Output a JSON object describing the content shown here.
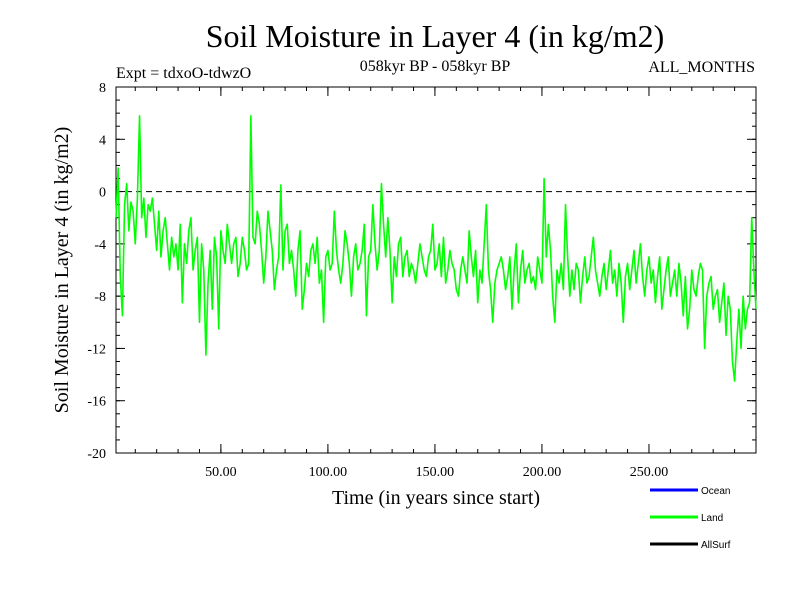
{
  "chart_data": {
    "type": "line",
    "title": "Soil Moisture in Layer 4 (in kg/m2)",
    "subtitle_left": "Expt = tdxoO-tdwzO",
    "subtitle_center": "058kyr BP - 058kyr BP",
    "subtitle_right": "ALL_MONTHS",
    "xlabel": "Time (in years since start)",
    "ylabel": "Soil Moisture in Layer 4 (in kg/m2)",
    "xlim": [
      1,
      300
    ],
    "ylim": [
      -20,
      8
    ],
    "xticks": [
      50,
      100,
      150,
      200,
      250
    ],
    "xtick_labels": [
      "50.00",
      "100.00",
      "150.00",
      "200.00",
      "250.00"
    ],
    "yticks": [
      8,
      4,
      0,
      -4,
      -8,
      -12,
      -16,
      -20
    ],
    "ytick_labels": [
      "8",
      "4",
      "0",
      "-4",
      "-8",
      "-12",
      "-16",
      "-20"
    ],
    "reference_line": {
      "y": 0,
      "style": "dashed"
    },
    "legend_position": "bottom-right",
    "series": [
      {
        "name": "Ocean",
        "legend_label": "Ocean",
        "color": "#0000ff",
        "values": []
      },
      {
        "name": "Land",
        "legend_label": "Land",
        "color": "#00ff00",
        "values": [
          -2.0,
          1.8,
          -6.5,
          -9.5,
          -1.0,
          0.6,
          -3.0,
          -0.8,
          -1.5,
          -4.0,
          -0.5,
          5.8,
          -2.0,
          -0.5,
          -3.5,
          -1.0,
          -1.5,
          -0.5,
          -2.5,
          -4.5,
          -1.5,
          -5.0,
          -3.0,
          -2.0,
          -4.0,
          -6.0,
          -3.5,
          -5.0,
          -4.0,
          -6.0,
          -2.5,
          -8.5,
          -4.0,
          -5.5,
          -3.0,
          -2.0,
          -6.0,
          -4.5,
          -3.5,
          -10.0,
          -4.0,
          -6.0,
          -12.5,
          -7.0,
          -4.5,
          -9.0,
          -3.5,
          -5.0,
          -10.5,
          -3.0,
          -4.5,
          -5.5,
          -2.5,
          -4.0,
          -5.5,
          -4.0,
          -3.5,
          -6.5,
          -5.5,
          -3.5,
          -4.5,
          -6.0,
          -5.5,
          5.8,
          -3.5,
          -4.0,
          -1.5,
          -2.5,
          -4.5,
          -7.0,
          -5.0,
          -1.5,
          -3.0,
          -4.5,
          -7.5,
          -6.0,
          -5.0,
          0.5,
          -6.0,
          -3.0,
          -2.5,
          -5.5,
          -4.5,
          -6.0,
          -8.0,
          -4.5,
          -3.0,
          -9.0,
          -7.5,
          -5.5,
          -6.5,
          -4.5,
          -4.0,
          -5.5,
          -3.5,
          -7.0,
          -6.0,
          -10.0,
          -5.0,
          -4.5,
          -6.0,
          -5.5,
          -1.5,
          -4.5,
          -6.0,
          -7.0,
          -5.5,
          -3.0,
          -4.0,
          -5.5,
          -8.0,
          -5.0,
          -4.0,
          -6.0,
          -5.5,
          -4.5,
          -2.5,
          -9.5,
          -5.0,
          -4.5,
          -1.0,
          -4.0,
          -6.0,
          -4.5,
          0.6,
          -2.5,
          -5.0,
          -2.0,
          -4.5,
          -8.5,
          -5.0,
          -6.5,
          -4.0,
          -3.5,
          -6.5,
          -5.0,
          -4.5,
          -6.5,
          -5.5,
          -6.0,
          -7.0,
          -5.5,
          -4.0,
          -5.0,
          -6.0,
          -6.5,
          -5.0,
          -4.5,
          -2.5,
          -6.0,
          -5.5,
          -4.0,
          -6.5,
          -3.5,
          -7.0,
          -6.0,
          -4.5,
          -5.5,
          -6.0,
          -7.5,
          -8.0,
          -6.0,
          -5.0,
          -6.0,
          -7.0,
          -3.0,
          -5.0,
          -6.5,
          -4.5,
          -8.5,
          -6.0,
          -7.0,
          -4.0,
          -1.0,
          -6.0,
          -7.5,
          -10.0,
          -7.0,
          -6.0,
          -5.5,
          -5.0,
          -6.0,
          -7.5,
          -6.5,
          -5.0,
          -9.0,
          -6.0,
          -4.0,
          -8.5,
          -6.0,
          -4.5,
          -7.0,
          -6.0,
          -5.5,
          -7.0,
          -6.5,
          -7.5,
          -5.0,
          -6.0,
          -7.0,
          1.0,
          -5.0,
          -2.5,
          -4.5,
          -8.0,
          -10.0,
          -6.0,
          -7.0,
          -5.5,
          -7.5,
          -1.0,
          -5.0,
          -8.0,
          -6.0,
          -7.5,
          -5.5,
          -6.0,
          -8.5,
          -6.5,
          -5.0,
          -7.0,
          -6.5,
          -5.0,
          -3.5,
          -6.0,
          -7.0,
          -8.0,
          -6.5,
          -5.5,
          -7.5,
          -6.0,
          -4.5,
          -7.0,
          -6.0,
          -8.0,
          -5.5,
          -7.0,
          -10.0,
          -6.5,
          -5.5,
          -7.5,
          -6.0,
          -4.5,
          -7.0,
          -5.5,
          -4.0,
          -6.5,
          -8.0,
          -6.0,
          -5.0,
          -7.0,
          -6.0,
          -8.5,
          -6.5,
          -5.0,
          -9.0,
          -7.5,
          -6.0,
          -5.0,
          -8.0,
          -7.0,
          -6.0,
          -8.0,
          -5.5,
          -7.0,
          -9.5,
          -6.5,
          -10.5,
          -9.0,
          -6.0,
          -7.5,
          -8.0,
          -6.5,
          -5.5,
          -6.0,
          -12.0,
          -8.0,
          -7.0,
          -6.5,
          -9.0,
          -8.0,
          -7.5,
          -10.0,
          -8.5,
          -7.0,
          -11.0,
          -8.0,
          -9.0,
          -13.0,
          -14.5,
          -11.5,
          -9.0,
          -12.0,
          -8.0,
          -10.5,
          -9.0,
          -8.5,
          -2.0,
          -6.0,
          -9.0
        ]
      },
      {
        "name": "AllSurf",
        "legend_label": "AllSurf",
        "color": "#000000",
        "values": []
      }
    ]
  }
}
